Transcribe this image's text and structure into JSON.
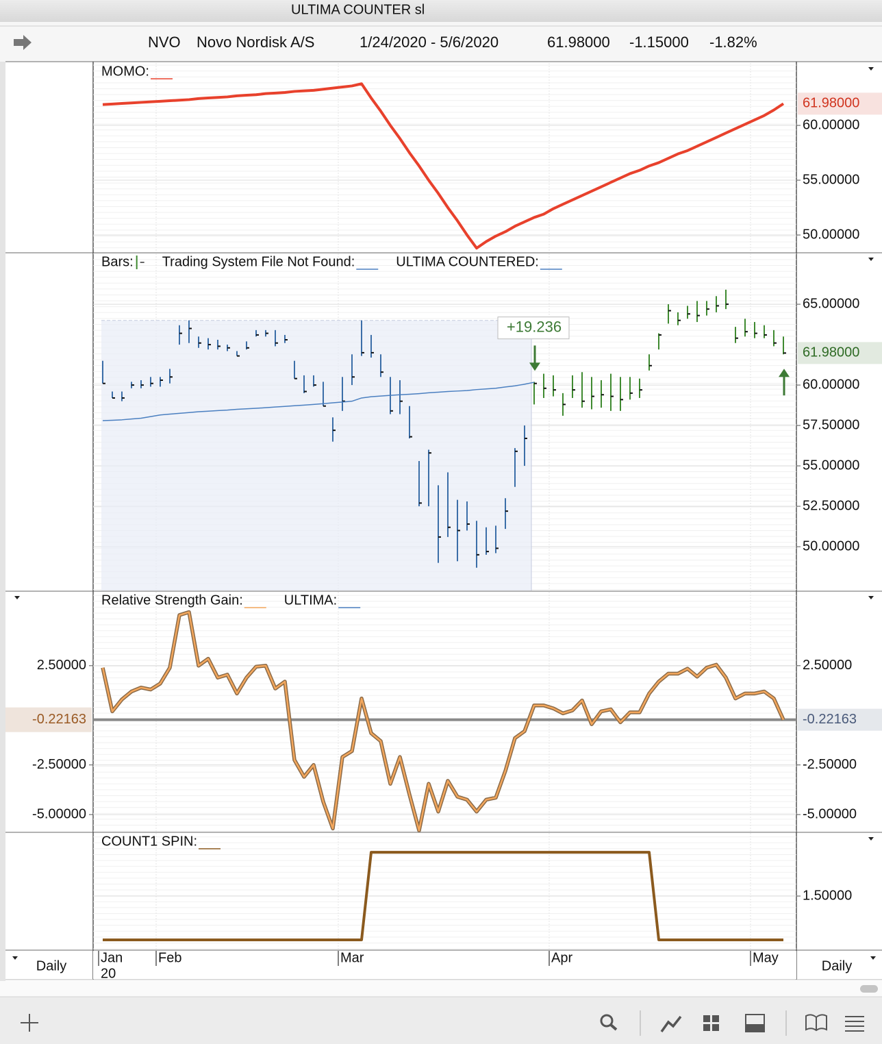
{
  "window": {
    "title": "ULTIMA COUNTER sl"
  },
  "header": {
    "symbol": "NVO",
    "name": "Novo Nordisk A/S",
    "range": "1/24/2020 - 5/6/2020",
    "last": "61.98000",
    "change": "-1.15000",
    "change_pct": "-1.82%"
  },
  "period": "Daily",
  "x_axis": {
    "xlim": [
      0,
      71
    ],
    "xticks": [
      {
        "value": 0,
        "label": "Jan"
      },
      {
        "value": 6,
        "label": "Feb"
      },
      {
        "value": 25,
        "label": "Mar"
      },
      {
        "value": 47,
        "label": "Apr"
      },
      {
        "value": 68,
        "label": "May"
      }
    ],
    "year_label": "20"
  },
  "chart_data": [
    {
      "type": "line",
      "series": [
        {
          "name": "MOMO:",
          "color": "#e8412c",
          "width": 4,
          "values": [
            61.9,
            61.95,
            62.0,
            62.05,
            62.1,
            62.15,
            62.2,
            62.25,
            62.3,
            62.35,
            62.45,
            62.5,
            62.55,
            62.6,
            62.7,
            62.75,
            62.8,
            62.9,
            62.95,
            63.0,
            63.1,
            63.15,
            63.2,
            63.3,
            63.4,
            63.5,
            63.6,
            63.8,
            62.5,
            61.3,
            60.0,
            58.8,
            57.5,
            56.3,
            55.0,
            53.8,
            52.5,
            51.3,
            50.0,
            48.8,
            49.4,
            49.9,
            50.3,
            50.8,
            51.2,
            51.6,
            51.9,
            52.4,
            52.8,
            53.2,
            53.6,
            54.0,
            54.4,
            54.8,
            55.2,
            55.6,
            55.9,
            56.3,
            56.6,
            57.0,
            57.4,
            57.7,
            58.1,
            58.5,
            58.9,
            59.3,
            59.7,
            60.1,
            60.5,
            60.9,
            61.4,
            61.98
          ]
        }
      ],
      "ylim": [
        48.44,
        65.69
      ],
      "yticks": [
        {
          "value": 50,
          "label": "50.00000"
        },
        {
          "value": 55,
          "label": "55.00000"
        },
        {
          "value": 60,
          "label": "60.00000"
        }
      ],
      "grid": true,
      "current": {
        "value": 61.98,
        "label": "61.98000",
        "color": "#d0341f"
      }
    },
    {
      "type": "ohlc",
      "series": [
        {
          "name": "Bars:",
          "colors": [
            "#3b6ea8",
            "#3f8a30"
          ],
          "high": [
            61.5,
            59.6,
            59.6,
            60.2,
            60.3,
            60.5,
            60.5,
            61.0,
            63.7,
            64.0,
            63.0,
            62.9,
            62.8,
            62.5,
            62.1,
            62.7,
            63.4,
            63.4,
            63.4,
            63.1,
            61.5,
            60.6,
            60.6,
            60.2,
            58.0,
            60.5,
            61.9,
            64.0,
            63.1,
            61.9,
            60.5,
            60.3,
            58.7,
            55.3,
            56.0,
            53.8,
            54.6,
            52.9,
            52.8,
            51.6,
            51.2,
            51.3,
            53.0,
            56.1,
            57.5,
            60.2,
            60.7,
            60.6,
            59.5,
            60.6,
            60.8,
            60.5,
            60.3,
            60.7,
            60.5,
            60.5,
            60.4,
            61.9,
            63.2,
            65.0,
            64.5,
            64.9,
            65.2,
            65.2,
            65.5,
            65.9,
            63.6,
            64.1,
            63.9,
            63.7,
            63.4,
            63.0
          ],
          "low": [
            60.1,
            59.2,
            59.0,
            59.8,
            59.8,
            59.9,
            59.9,
            60.1,
            62.5,
            62.6,
            62.3,
            62.2,
            62.2,
            62.1,
            61.8,
            62.2,
            63.0,
            63.0,
            62.4,
            62.6,
            60.4,
            59.5,
            59.9,
            58.7,
            56.5,
            58.4,
            60.0,
            61.8,
            61.7,
            60.5,
            58.2,
            58.2,
            56.7,
            52.5,
            52.5,
            49.0,
            50.6,
            49.1,
            51.0,
            48.7,
            49.5,
            49.6,
            51.1,
            53.7,
            55.0,
            58.8,
            59.2,
            59.3,
            58.1,
            59.2,
            58.6,
            58.5,
            58.6,
            58.4,
            58.4,
            59.1,
            59.2,
            60.9,
            62.2,
            63.8,
            63.7,
            64.1,
            63.9,
            64.3,
            64.5,
            64.7,
            62.6,
            63.0,
            62.9,
            62.9,
            62.4,
            61.9
          ],
          "close": [
            60.1,
            59.2,
            59.2,
            60.0,
            60.0,
            60.1,
            60.3,
            60.5,
            63.2,
            63.5,
            62.6,
            62.5,
            62.4,
            62.3,
            61.8,
            62.3,
            63.1,
            63.2,
            62.6,
            62.8,
            60.4,
            59.6,
            60.0,
            58.7,
            57.2,
            59.0,
            60.5,
            62.0,
            62.0,
            60.8,
            58.4,
            59.0,
            56.8,
            52.7,
            55.8,
            50.6,
            51.2,
            51.0,
            51.4,
            49.5,
            49.7,
            49.9,
            52.2,
            55.9,
            56.7,
            60.1,
            59.8,
            59.7,
            58.8,
            59.7,
            59.0,
            59.3,
            59.4,
            59.3,
            59.1,
            59.5,
            59.7,
            61.2,
            63.1,
            64.6,
            64.0,
            64.4,
            64.3,
            64.7,
            64.9,
            65.0,
            62.9,
            63.3,
            63.2,
            63.1,
            62.6,
            61.98
          ]
        },
        {
          "name": "Trading System File Not Found:",
          "color": "#4a7fc0"
        },
        {
          "name": "ULTIMA COUNTERED:",
          "color": "#4a7fc0",
          "width": 1.5,
          "values": [
            57.8,
            57.82,
            57.85,
            57.9,
            57.95,
            58.05,
            58.15,
            58.2,
            58.25,
            58.3,
            58.35,
            58.38,
            58.42,
            58.45,
            58.5,
            58.53,
            58.56,
            58.6,
            58.64,
            58.68,
            58.72,
            58.76,
            58.8,
            58.85,
            58.9,
            58.95,
            59.0,
            59.2,
            59.28,
            59.32,
            59.36,
            59.4,
            59.43,
            59.47,
            59.52,
            59.56,
            59.6,
            59.63,
            59.66,
            59.72,
            59.76,
            59.8,
            59.88,
            59.95,
            60.05,
            60.17,
            null,
            null,
            null,
            null,
            null,
            null,
            null,
            null,
            null,
            null,
            null,
            null,
            null,
            null,
            null,
            null,
            null,
            null,
            null,
            null,
            null,
            null,
            null,
            null,
            null,
            null
          ]
        }
      ],
      "ylim": [
        47.29,
        68.14
      ],
      "yticks": [
        {
          "value": 50,
          "label": "50.00000"
        },
        {
          "value": 52.5,
          "label": "52.50000"
        },
        {
          "value": 55,
          "label": "55.00000"
        },
        {
          "value": 57.5,
          "label": "57.50000"
        },
        {
          "value": 60,
          "label": "60.00000"
        },
        {
          "value": 65,
          "label": "65.00000"
        }
      ],
      "grid": true,
      "shaded_range": [
        0,
        44
      ],
      "annotation": "+19.236",
      "signals": [
        {
          "index": 45,
          "direction": "down"
        },
        {
          "index": 71,
          "direction": "up"
        }
      ],
      "signal_color": "#3d7a35",
      "current": {
        "value": 61.98,
        "label": "61.98000",
        "color": "#2f6b25"
      }
    },
    {
      "type": "line",
      "series": [
        {
          "name": "Relative Strength Gain:",
          "color": "#f4a75c",
          "outline": "#8a6a48",
          "width": 2.5,
          "values": [
            2.4,
            0.2,
            0.8,
            1.2,
            1.4,
            1.3,
            1.6,
            2.4,
            5.05,
            5.2,
            2.5,
            2.85,
            1.9,
            2.05,
            1.1,
            1.9,
            2.45,
            2.5,
            1.35,
            1.7,
            -2.25,
            -3.1,
            -2.5,
            -4.35,
            -5.7,
            -2.1,
            -1.8,
            0.85,
            -0.9,
            -1.3,
            -3.45,
            -2.1,
            -4.0,
            -5.8,
            -3.45,
            -4.85,
            -3.3,
            -4.1,
            -4.25,
            -4.85,
            -4.25,
            -4.15,
            -2.8,
            -1.15,
            -0.8,
            0.5,
            0.5,
            0.35,
            0.1,
            0.25,
            0.75,
            -0.45,
            0.2,
            0.3,
            -0.35,
            0.15,
            0.15,
            1.1,
            1.7,
            2.1,
            2.1,
            2.35,
            1.95,
            2.4,
            2.55,
            1.9,
            0.85,
            1.1,
            1.1,
            1.2,
            0.85,
            -0.22163
          ]
        },
        {
          "name": "ULTIMA:",
          "color": "#4a7fc0"
        }
      ],
      "ylim": [
        -5.86,
        6.22
      ],
      "yticks": [
        {
          "value": -5,
          "label": "-5.00000"
        },
        {
          "value": -2.5,
          "label": "-2.50000"
        },
        {
          "value": 2.5,
          "label": "2.50000"
        }
      ],
      "left_axis": true,
      "grid": true,
      "current": {
        "value": -0.22163,
        "label": "-0.22163",
        "color": "#4a5a7a",
        "left_color": "#9a5a24",
        "reference_line": "#8a8a8a"
      }
    },
    {
      "type": "line",
      "series": [
        {
          "name": "COUNT1 SPIN:",
          "color": "#8b5a1e",
          "width": 4,
          "values": [
            1,
            1,
            1,
            1,
            1,
            1,
            1,
            1,
            1,
            1,
            1,
            1,
            1,
            1,
            1,
            1,
            1,
            1,
            1,
            1,
            1,
            1,
            1,
            1,
            1,
            1,
            1,
            1,
            2,
            2,
            2,
            2,
            2,
            2,
            2,
            2,
            2,
            2,
            2,
            2,
            2,
            2,
            2,
            2,
            2,
            2,
            2,
            2,
            2,
            2,
            2,
            2,
            2,
            2,
            2,
            2,
            2,
            2,
            1,
            1,
            1,
            1,
            1,
            1,
            1,
            1,
            1,
            1,
            1,
            1,
            1,
            1
          ]
        }
      ],
      "ylim": [
        0.89,
        2.22
      ],
      "yticks": [
        {
          "value": 1.5,
          "label": "1.50000"
        }
      ],
      "grid": true
    }
  ]
}
